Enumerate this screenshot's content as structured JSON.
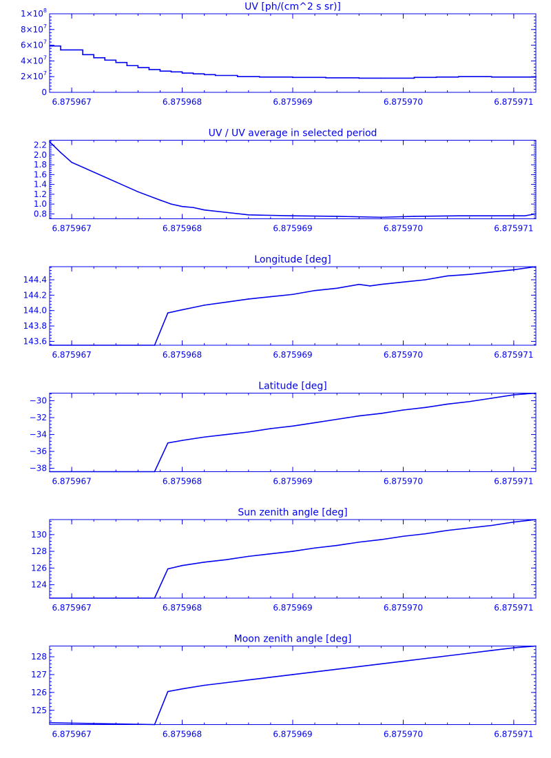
{
  "theme": {
    "color": "#0000ee",
    "background": "#ffffff"
  },
  "chart_data": [
    {
      "type": "line",
      "title": "UV [ph/(cm^2 s sr)]",
      "xlabel": "",
      "ylabel": "",
      "xlim": [
        6.8759668,
        6.8759712
      ],
      "ylim": [
        0,
        100000000
      ],
      "xticks": [
        {
          "value": 6.875967,
          "label": "6.875967"
        },
        {
          "value": 6.875968,
          "label": "6.875968"
        },
        {
          "value": 6.875969,
          "label": "6.875969"
        },
        {
          "value": 6.87597,
          "label": "6.875970"
        },
        {
          "value": 6.875971,
          "label": "6.875971"
        }
      ],
      "yticks": [
        {
          "value": 0,
          "label": "0",
          "base": "",
          "exp": ""
        },
        {
          "value": 20000000,
          "label": "2×10^7",
          "base": "2×10",
          "exp": "7"
        },
        {
          "value": 40000000,
          "label": "4×10^7",
          "base": "4×10",
          "exp": "7"
        },
        {
          "value": 60000000,
          "label": "6×10^7",
          "base": "6×10",
          "exp": "7"
        },
        {
          "value": 80000000,
          "label": "8×10^7",
          "base": "8×10",
          "exp": "7"
        },
        {
          "value": 100000000,
          "label": "1×10^8",
          "base": "1×10",
          "exp": "8"
        }
      ],
      "series": [
        {
          "step": true,
          "x": [
            6.8759668,
            6.8759669,
            6.8759671,
            6.8759672,
            6.8759673,
            6.8759674,
            6.8759675,
            6.8759676,
            6.8759677,
            6.8759678,
            6.8759679,
            6.875968,
            6.8759681,
            6.8759682,
            6.8759683,
            6.8759685,
            6.8759687,
            6.875969,
            6.8759693,
            6.8759696,
            6.8759698,
            6.8759701,
            6.8759703,
            6.8759705,
            6.8759708,
            6.875971,
            6.8759712
          ],
          "y": [
            59000000,
            54000000,
            48000000,
            44000000,
            41000000,
            38000000,
            34000000,
            31500000,
            29000000,
            27000000,
            26000000,
            24500000,
            23500000,
            22500000,
            21500000,
            20000000,
            19500000,
            19000000,
            18500000,
            18000000,
            18000000,
            19000000,
            19500000,
            20000000,
            19500000,
            19500000,
            20000000
          ]
        }
      ]
    },
    {
      "type": "line",
      "title": "UV / UV average in selected period",
      "xlabel": "",
      "ylabel": "",
      "xlim": [
        6.8759668,
        6.8759712
      ],
      "ylim": [
        0.7,
        2.3
      ],
      "xticks": [
        {
          "value": 6.875967,
          "label": "6.875967"
        },
        {
          "value": 6.875968,
          "label": "6.875968"
        },
        {
          "value": 6.875969,
          "label": "6.875969"
        },
        {
          "value": 6.87597,
          "label": "6.875970"
        },
        {
          "value": 6.875971,
          "label": "6.875971"
        }
      ],
      "yticks": [
        {
          "value": 0.8,
          "label": "0.8"
        },
        {
          "value": 1.0,
          "label": "1.0"
        },
        {
          "value": 1.2,
          "label": "1.2"
        },
        {
          "value": 1.4,
          "label": "1.4"
        },
        {
          "value": 1.6,
          "label": "1.6"
        },
        {
          "value": 1.8,
          "label": "1.8"
        },
        {
          "value": 2.0,
          "label": "2.0"
        },
        {
          "value": 2.2,
          "label": "2.2"
        }
      ],
      "series": [
        {
          "x": [
            6.8759668,
            6.8759669,
            6.875967,
            6.8759672,
            6.8759674,
            6.8759676,
            6.8759678,
            6.8759679,
            6.875968,
            6.8759681,
            6.8759682,
            6.8759684,
            6.8759686,
            6.875969,
            6.8759694,
            6.8759698,
            6.8759701,
            6.8759705,
            6.8759708,
            6.8759711,
            6.8759712
          ],
          "y": [
            2.27,
            2.05,
            1.85,
            1.65,
            1.45,
            1.25,
            1.08,
            1.0,
            0.95,
            0.93,
            0.88,
            0.83,
            0.78,
            0.76,
            0.75,
            0.73,
            0.75,
            0.76,
            0.76,
            0.76,
            0.8
          ]
        }
      ]
    },
    {
      "type": "line",
      "title": "Longitude [deg]",
      "xlabel": "",
      "ylabel": "",
      "xlim": [
        6.8759668,
        6.8759712
      ],
      "ylim": [
        143.55,
        144.57
      ],
      "xticks": [
        {
          "value": 6.875967,
          "label": "6.875967"
        },
        {
          "value": 6.875968,
          "label": "6.875968"
        },
        {
          "value": 6.875969,
          "label": "6.875969"
        },
        {
          "value": 6.87597,
          "label": "6.875970"
        },
        {
          "value": 6.875971,
          "label": "6.875971"
        }
      ],
      "yticks": [
        {
          "value": 143.6,
          "label": "143.6"
        },
        {
          "value": 143.8,
          "label": "143.8"
        },
        {
          "value": 144.0,
          "label": "144.0"
        },
        {
          "value": 144.2,
          "label": "144.2"
        },
        {
          "value": 144.4,
          "label": "144.4"
        }
      ],
      "series": [
        {
          "x": [
            6.8759668,
            6.87596775,
            6.87596787,
            6.875968,
            6.8759681,
            6.8759682,
            6.8759684,
            6.8759686,
            6.8759688,
            6.875969,
            6.8759692,
            6.8759694,
            6.8759696,
            6.8759697,
            6.8759698,
            6.87597,
            6.8759702,
            6.8759704,
            6.8759706,
            6.8759708,
            6.875971,
            6.8759712
          ],
          "y": [
            143.55,
            143.55,
            143.97,
            144.01,
            144.04,
            144.07,
            144.11,
            144.15,
            144.18,
            144.21,
            144.26,
            144.29,
            144.34,
            144.32,
            144.34,
            144.37,
            144.4,
            144.45,
            144.47,
            144.5,
            144.53,
            144.57
          ]
        }
      ]
    },
    {
      "type": "line",
      "title": "Latitude [deg]",
      "xlabel": "",
      "ylabel": "",
      "xlim": [
        6.8759668,
        6.8759712
      ],
      "ylim": [
        -38.4,
        -29.1
      ],
      "xticks": [
        {
          "value": 6.875967,
          "label": "6.875967"
        },
        {
          "value": 6.875968,
          "label": "6.875968"
        },
        {
          "value": 6.875969,
          "label": "6.875969"
        },
        {
          "value": 6.87597,
          "label": "6.875970"
        },
        {
          "value": 6.875971,
          "label": "6.875971"
        }
      ],
      "yticks": [
        {
          "value": -38,
          "label": "−38"
        },
        {
          "value": -36,
          "label": "−36"
        },
        {
          "value": -34,
          "label": "−34"
        },
        {
          "value": -32,
          "label": "−32"
        },
        {
          "value": -30,
          "label": "−30"
        }
      ],
      "series": [
        {
          "x": [
            6.8759668,
            6.87596775,
            6.87596787,
            6.875968,
            6.8759682,
            6.8759684,
            6.8759686,
            6.8759688,
            6.875969,
            6.8759692,
            6.8759694,
            6.8759696,
            6.8759698,
            6.87597,
            6.8759702,
            6.8759704,
            6.8759706,
            6.8759708,
            6.875971,
            6.8759712
          ],
          "y": [
            -38.4,
            -38.4,
            -35.0,
            -34.7,
            -34.3,
            -34.0,
            -33.7,
            -33.3,
            -33.0,
            -32.6,
            -32.2,
            -31.8,
            -31.5,
            -31.1,
            -30.8,
            -30.4,
            -30.1,
            -29.7,
            -29.3,
            -29.1
          ]
        }
      ]
    },
    {
      "type": "line",
      "title": "Sun zenith angle [deg]",
      "xlabel": "",
      "ylabel": "",
      "xlim": [
        6.8759668,
        6.8759712
      ],
      "ylim": [
        122.4,
        131.8
      ],
      "xticks": [
        {
          "value": 6.875967,
          "label": "6.875967"
        },
        {
          "value": 6.875968,
          "label": "6.875968"
        },
        {
          "value": 6.875969,
          "label": "6.875969"
        },
        {
          "value": 6.87597,
          "label": "6.875970"
        },
        {
          "value": 6.875971,
          "label": "6.875971"
        }
      ],
      "yticks": [
        {
          "value": 124,
          "label": "124"
        },
        {
          "value": 126,
          "label": "126"
        },
        {
          "value": 128,
          "label": "128"
        },
        {
          "value": 130,
          "label": "130"
        }
      ],
      "series": [
        {
          "x": [
            6.8759668,
            6.87596775,
            6.87596787,
            6.875968,
            6.8759682,
            6.8759684,
            6.8759686,
            6.8759688,
            6.875969,
            6.8759692,
            6.8759694,
            6.8759696,
            6.8759698,
            6.87597,
            6.8759702,
            6.8759704,
            6.8759706,
            6.8759708,
            6.875971,
            6.8759712
          ],
          "y": [
            122.4,
            122.4,
            125.9,
            126.3,
            126.7,
            127.0,
            127.4,
            127.7,
            128.0,
            128.4,
            128.7,
            129.1,
            129.4,
            129.8,
            130.1,
            130.5,
            130.8,
            131.1,
            131.5,
            131.8
          ]
        }
      ]
    },
    {
      "type": "line",
      "title": "Moon zenith angle [deg]",
      "xlabel": "",
      "ylabel": "",
      "xlim": [
        6.8759668,
        6.8759712
      ],
      "ylim": [
        124.2,
        128.6
      ],
      "xticks": [
        {
          "value": 6.875967,
          "label": "6.875967"
        },
        {
          "value": 6.875968,
          "label": "6.875968"
        },
        {
          "value": 6.875969,
          "label": "6.875969"
        },
        {
          "value": 6.87597,
          "label": "6.875970"
        },
        {
          "value": 6.875971,
          "label": "6.875971"
        }
      ],
      "yticks": [
        {
          "value": 125,
          "label": "125"
        },
        {
          "value": 126,
          "label": "126"
        },
        {
          "value": 127,
          "label": "127"
        },
        {
          "value": 128,
          "label": "128"
        }
      ],
      "series": [
        {
          "x": [
            6.8759668,
            6.87596775,
            6.87596787,
            6.875968,
            6.8759682,
            6.8759684,
            6.8759686,
            6.8759688,
            6.875969,
            6.8759692,
            6.8759694,
            6.8759696,
            6.8759698,
            6.87597,
            6.8759702,
            6.8759704,
            6.8759706,
            6.8759708,
            6.875971,
            6.8759712
          ],
          "y": [
            124.3,
            124.2,
            126.05,
            126.2,
            126.4,
            126.55,
            126.7,
            126.85,
            127.0,
            127.15,
            127.3,
            127.45,
            127.6,
            127.75,
            127.9,
            128.05,
            128.2,
            128.35,
            128.5,
            128.6
          ]
        }
      ]
    }
  ]
}
